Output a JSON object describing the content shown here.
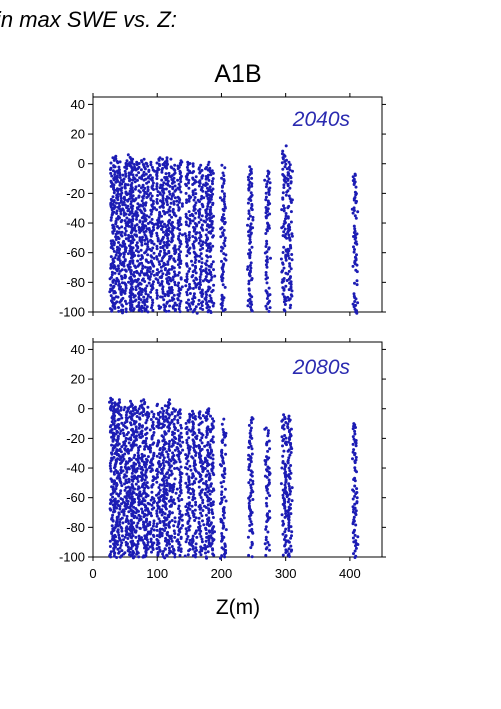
{
  "header": {
    "title_fragment": "in max SWE vs. Z:"
  },
  "chart_data": {
    "type": "scatter",
    "title": "A1B",
    "xlabel": "Z(m)",
    "ylabel": "",
    "xlim": [
      0,
      450
    ],
    "ylim": [
      -100,
      45
    ],
    "xticks": [
      0,
      100,
      200,
      300,
      400
    ],
    "yticks": [
      40,
      20,
      0,
      -20,
      -40,
      -60,
      -80,
      -100
    ],
    "grid": false,
    "point_color": "#1c1cb4",
    "columns_x": [
      30,
      35,
      42,
      50,
      58,
      62,
      70,
      78,
      84,
      92,
      102,
      110,
      117,
      125,
      135,
      148,
      158,
      168,
      178,
      185,
      203,
      245,
      272,
      298,
      306,
      408
    ],
    "panels": [
      {
        "label": "2040s",
        "columns": [
          {
            "x": 30,
            "ymin": -100,
            "ymax": 4
          },
          {
            "x": 35,
            "ymin": -100,
            "ymax": 5
          },
          {
            "x": 42,
            "ymin": -100,
            "ymax": 3
          },
          {
            "x": 50,
            "ymin": -100,
            "ymax": 2
          },
          {
            "x": 58,
            "ymin": -100,
            "ymax": 6
          },
          {
            "x": 62,
            "ymin": -100,
            "ymax": 3
          },
          {
            "x": 70,
            "ymin": -100,
            "ymax": 1
          },
          {
            "x": 78,
            "ymin": -100,
            "ymax": 3
          },
          {
            "x": 84,
            "ymin": -100,
            "ymax": 0
          },
          {
            "x": 92,
            "ymin": -100,
            "ymax": 1
          },
          {
            "x": 102,
            "ymin": -100,
            "ymax": 4
          },
          {
            "x": 110,
            "ymin": -100,
            "ymax": 3
          },
          {
            "x": 117,
            "ymin": -100,
            "ymax": 4
          },
          {
            "x": 125,
            "ymin": -100,
            "ymax": -1
          },
          {
            "x": 135,
            "ymin": -100,
            "ymax": 2
          },
          {
            "x": 148,
            "ymin": -100,
            "ymax": 1
          },
          {
            "x": 158,
            "ymin": -100,
            "ymax": 0
          },
          {
            "x": 168,
            "ymin": -100,
            "ymax": -1
          },
          {
            "x": 178,
            "ymin": -100,
            "ymax": 1
          },
          {
            "x": 185,
            "ymin": -100,
            "ymax": -3
          },
          {
            "x": 203,
            "ymin": -100,
            "ymax": -1
          },
          {
            "x": 245,
            "ymin": -100,
            "ymax": -2
          },
          {
            "x": 272,
            "ymin": -100,
            "ymax": -5
          },
          {
            "x": 298,
            "ymin": -100,
            "ymax": 12
          },
          {
            "x": 306,
            "ymin": -100,
            "ymax": 1
          },
          {
            "x": 408,
            "ymin": -100,
            "ymax": -7
          }
        ]
      },
      {
        "label": "2080s",
        "columns": [
          {
            "x": 30,
            "ymin": -100,
            "ymax": 7
          },
          {
            "x": 35,
            "ymin": -100,
            "ymax": 4
          },
          {
            "x": 42,
            "ymin": -100,
            "ymax": 6
          },
          {
            "x": 50,
            "ymin": -100,
            "ymax": 1
          },
          {
            "x": 58,
            "ymin": -100,
            "ymax": 5
          },
          {
            "x": 62,
            "ymin": -100,
            "ymax": 2
          },
          {
            "x": 70,
            "ymin": -100,
            "ymax": 0
          },
          {
            "x": 78,
            "ymin": -100,
            "ymax": 6
          },
          {
            "x": 84,
            "ymin": -100,
            "ymax": 1
          },
          {
            "x": 92,
            "ymin": -100,
            "ymax": -2
          },
          {
            "x": 102,
            "ymin": -100,
            "ymax": 3
          },
          {
            "x": 110,
            "ymin": -100,
            "ymax": 2
          },
          {
            "x": 117,
            "ymin": -100,
            "ymax": 6
          },
          {
            "x": 125,
            "ymin": -100,
            "ymax": 0
          },
          {
            "x": 135,
            "ymin": -100,
            "ymax": 1
          },
          {
            "x": 148,
            "ymin": -100,
            "ymax": -2
          },
          {
            "x": 158,
            "ymin": -100,
            "ymax": 0
          },
          {
            "x": 168,
            "ymin": -100,
            "ymax": -2
          },
          {
            "x": 178,
            "ymin": -100,
            "ymax": 0
          },
          {
            "x": 185,
            "ymin": -100,
            "ymax": -5
          },
          {
            "x": 203,
            "ymin": -100,
            "ymax": -7
          },
          {
            "x": 245,
            "ymin": -100,
            "ymax": -6
          },
          {
            "x": 272,
            "ymin": -100,
            "ymax": -13
          },
          {
            "x": 298,
            "ymin": -100,
            "ymax": -4
          },
          {
            "x": 306,
            "ymin": -100,
            "ymax": -5
          },
          {
            "x": 408,
            "ymin": -100,
            "ymax": -10
          }
        ]
      }
    ]
  }
}
